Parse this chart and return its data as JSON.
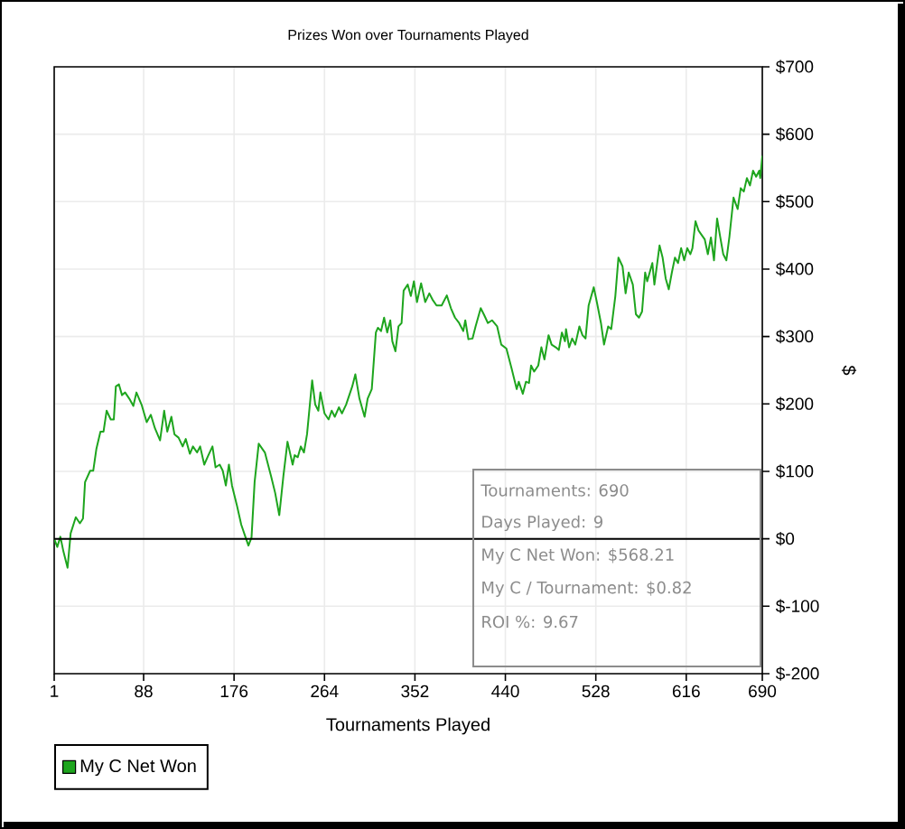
{
  "chart_data": {
    "type": "line",
    "title": "Prizes Won over Tournaments Played",
    "xlabel": "Tournaments Played",
    "ylabel": "$",
    "x": [
      1,
      4,
      7,
      10,
      14,
      17,
      22,
      26,
      29,
      31,
      36,
      39,
      42,
      46,
      49,
      52,
      56,
      59,
      61,
      64,
      67,
      70,
      74,
      78,
      81,
      86,
      91,
      95,
      99,
      104,
      108,
      111,
      115,
      118,
      122,
      126,
      129,
      133,
      136,
      140,
      143,
      147,
      151,
      155,
      158,
      162,
      165,
      168,
      171,
      174,
      179,
      183,
      187,
      190,
      193,
      196,
      200,
      206,
      212,
      216,
      220,
      224,
      228,
      233,
      235,
      238,
      241,
      244,
      247,
      252,
      255,
      258,
      260,
      264,
      268,
      271,
      274,
      278,
      281,
      285,
      291,
      294,
      298,
      303,
      306,
      310,
      314,
      316,
      319,
      322,
      325,
      328,
      330,
      333,
      336,
      339,
      341,
      345,
      348,
      351,
      354,
      358,
      362,
      366,
      369,
      373,
      378,
      383,
      387,
      391,
      395,
      399,
      401,
      404,
      408,
      411,
      416,
      419,
      423,
      427,
      432,
      436,
      441,
      446,
      451,
      453,
      457,
      460,
      463,
      465,
      468,
      472,
      475,
      478,
      482,
      485,
      489,
      492,
      495,
      498,
      499,
      502,
      505,
      508,
      512,
      515,
      518,
      521,
      526,
      529,
      533,
      536,
      540,
      543,
      547,
      550,
      554,
      557,
      560,
      564,
      567,
      570,
      573,
      576,
      578,
      583,
      585,
      590,
      593,
      596,
      599,
      602,
      605,
      608,
      611,
      614,
      617,
      620,
      622,
      625,
      628,
      634,
      637,
      640,
      643,
      646,
      649,
      652,
      655,
      658,
      662,
      666,
      669,
      672,
      675,
      678,
      681,
      684,
      687,
      688,
      690
    ],
    "series": [
      {
        "name": "My C Net Won",
        "color": "#1ea51e",
        "values": [
          0,
          -12,
          3,
          -19,
          -43,
          8,
          32,
          23,
          30,
          84,
          101,
          101,
          133,
          159,
          159,
          190,
          177,
          177,
          226,
          229,
          213,
          217,
          208,
          197,
          217,
          199,
          173,
          184,
          164,
          146,
          190,
          159,
          181,
          155,
          150,
          137,
          148,
          126,
          137,
          128,
          137,
          110,
          124,
          137,
          106,
          110,
          101,
          79,
          110,
          79,
          48,
          21,
          3,
          -10,
          2,
          84,
          141,
          128,
          93,
          68,
          35,
          93,
          144,
          110,
          124,
          121,
          137,
          128,
          155,
          235,
          199,
          190,
          217,
          186,
          177,
          190,
          181,
          195,
          186,
          199,
          226,
          244,
          208,
          181,
          208,
          222,
          306,
          313,
          308,
          328,
          306,
          324,
          293,
          278,
          315,
          320,
          368,
          377,
          360,
          382,
          351,
          379,
          351,
          364,
          355,
          346,
          346,
          361,
          342,
          328,
          320,
          308,
          324,
          296,
          297,
          315,
          342,
          333,
          320,
          324,
          315,
          288,
          282,
          253,
          222,
          233,
          215,
          233,
          231,
          257,
          248,
          257,
          284,
          266,
          302,
          288,
          284,
          280,
          306,
          293,
          311,
          284,
          297,
          288,
          315,
          302,
          297,
          346,
          373,
          351,
          320,
          288,
          315,
          311,
          360,
          417,
          404,
          364,
          395,
          377,
          333,
          328,
          337,
          395,
          382,
          409,
          377,
          435,
          417,
          386,
          370,
          395,
          417,
          409,
          431,
          413,
          431,
          422,
          431,
          471,
          457,
          444,
          422,
          447,
          413,
          475,
          448,
          422,
          413,
          448,
          506,
          489,
          520,
          515,
          535,
          524,
          546,
          537,
          546,
          535,
          568
        ]
      }
    ],
    "xlim": [
      1,
      690
    ],
    "xticks": [
      1,
      88,
      176,
      264,
      352,
      440,
      528,
      616,
      690
    ],
    "ylim": [
      -200,
      700
    ],
    "yticks": [
      {
        "value": -200,
        "label": "$-200"
      },
      {
        "value": -100,
        "label": "$-100"
      },
      {
        "value": 0,
        "label": "$0"
      },
      {
        "value": 100,
        "label": "$100"
      },
      {
        "value": 200,
        "label": "$200"
      },
      {
        "value": 300,
        "label": "$300"
      },
      {
        "value": 400,
        "label": "$400"
      },
      {
        "value": 500,
        "label": "$500"
      },
      {
        "value": 600,
        "label": "$600"
      },
      {
        "value": 700,
        "label": "$700"
      }
    ],
    "grid": true,
    "legend": "bottom left",
    "ref_lines": [
      {
        "axis": "y",
        "value": 0,
        "color": "#000000"
      }
    ],
    "annotations": [
      "Tournaments: 690",
      "Days Played: 9",
      "My C Net Won: $568.21",
      "My C / Tournament: $0.82",
      "ROI %: 9.67"
    ]
  }
}
